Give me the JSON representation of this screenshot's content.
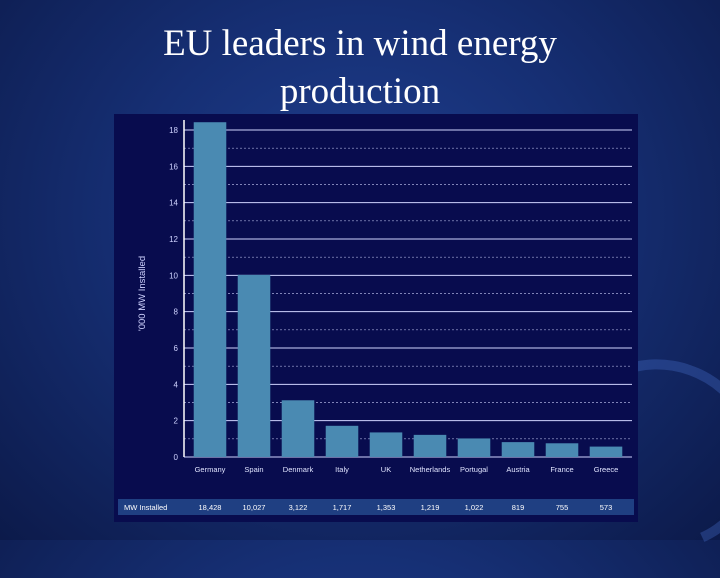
{
  "slide": {
    "title_line1": "EU leaders in wind energy",
    "title_line2": "production"
  },
  "colors": {
    "bar": "#4a8ab2",
    "panel": "#080c4e",
    "gridline": "#cfd3ff",
    "table_row": "#1f3f82"
  },
  "chart_data": {
    "type": "bar",
    "title": "",
    "ylabel": "'000 MW Installed",
    "xlabel": "",
    "ylim": [
      0,
      18
    ],
    "yticks": [
      0,
      2,
      4,
      6,
      8,
      10,
      12,
      14,
      16,
      18
    ],
    "ytick_labels": [
      "0",
      "2",
      "4",
      "6",
      "8",
      "10",
      "12",
      "14",
      "16",
      "18"
    ],
    "categories": [
      "Germany",
      "Spain",
      "Denmark",
      "Italy",
      "UK",
      "Netherlands",
      "Portugal",
      "Austria",
      "France",
      "Greece"
    ],
    "values": [
      18.428,
      10.027,
      3.122,
      1.717,
      1.353,
      1.219,
      1.022,
      0.819,
      0.755,
      0.573
    ],
    "grid": true,
    "table": {
      "row_label": "MW Installed",
      "values": [
        "18,428",
        "10,027",
        "3,122",
        "1,717",
        "1,353",
        "1,219",
        "1,022",
        "819",
        "755",
        "573"
      ]
    }
  }
}
